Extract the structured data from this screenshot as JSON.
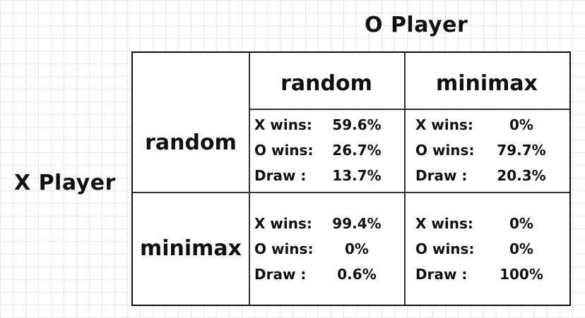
{
  "o_player_label": "O Player",
  "x_player_label": "X Player",
  "columns": [
    "random",
    "minimax"
  ],
  "rows": [
    "random",
    "minimax"
  ],
  "cells": [
    [
      {
        "x_wins_label": "X wins:",
        "x_wins": "59.6%",
        "o_wins_label": "O wins:",
        "o_wins": "26.7%",
        "draw_label": "Draw :",
        "draw": "13.7%"
      },
      {
        "x_wins_label": "X wins:",
        "x_wins": "0%",
        "o_wins_label": "O wins:",
        "o_wins": "79.7%",
        "draw_label": "Draw :",
        "draw": "20.3%"
      }
    ],
    [
      {
        "x_wins_label": "X wins:",
        "x_wins": "99.4%",
        "o_wins_label": "O wins:",
        "o_wins": "0%",
        "draw_label": "Draw :",
        "draw": "0.6%"
      },
      {
        "x_wins_label": "X wins:",
        "x_wins": "0%",
        "o_wins_label": "O wins:",
        "o_wins": "0%",
        "draw_label": "Draw :",
        "draw": "100%"
      }
    ]
  ]
}
